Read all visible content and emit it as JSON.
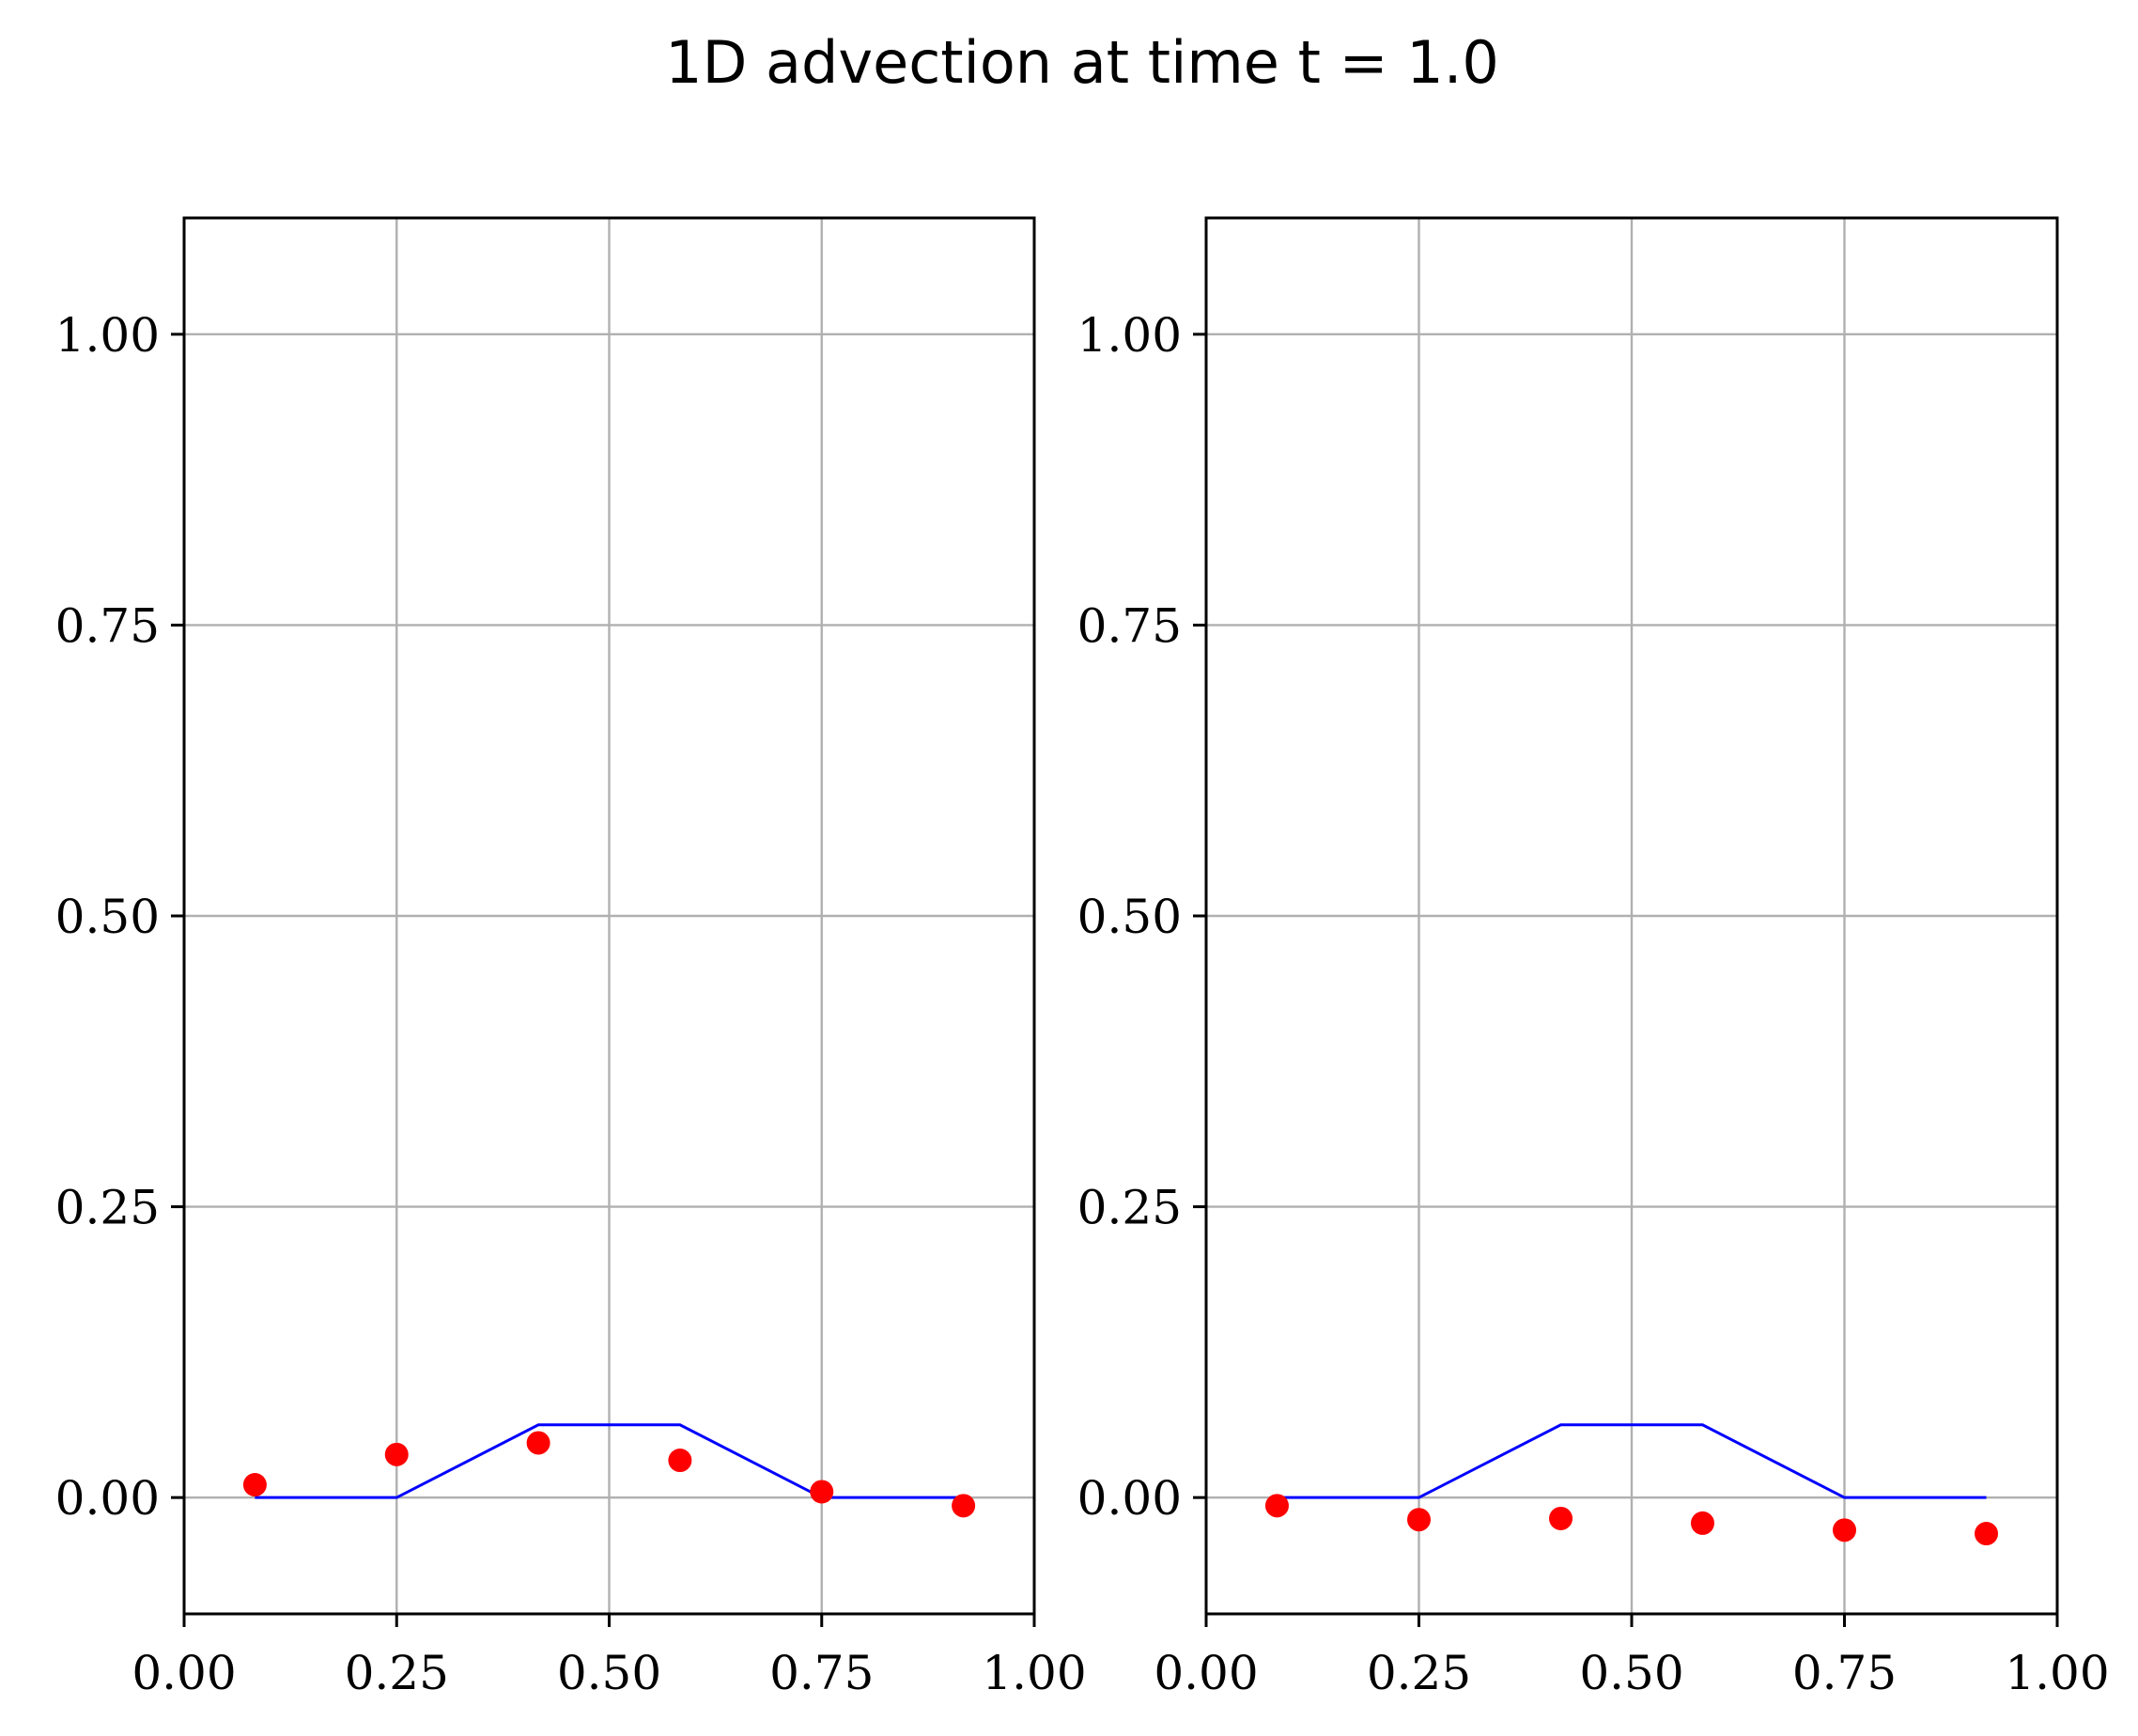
{
  "figure": {
    "title": "1D advection at time t = 1.0"
  },
  "colors": {
    "line": "#0000ff",
    "points": "#ff0000",
    "grid": "#b0b0b0",
    "axes": "#000000"
  },
  "chart_data": [
    {
      "type": "line",
      "title": "",
      "xlabel": "",
      "ylabel": "",
      "xlim": [
        0.0,
        1.0
      ],
      "ylim": [
        -0.1,
        1.1
      ],
      "xticks": [
        "0.00",
        "0.25",
        "0.50",
        "0.75",
        "1.00"
      ],
      "yticks": [
        "0.00",
        "0.25",
        "0.50",
        "0.75",
        "1.00"
      ],
      "grid": true,
      "series": [
        {
          "type": "line",
          "color": "#0000ff",
          "x": [
            0.0833,
            0.25,
            0.4167,
            0.5833,
            0.75,
            0.9167
          ],
          "y": [
            0.0,
            0.0,
            0.0625,
            0.0625,
            0.0,
            0.0
          ]
        },
        {
          "type": "scatter",
          "color": "#ff0000",
          "x": [
            0.0833,
            0.25,
            0.4167,
            0.5833,
            0.75,
            0.9167
          ],
          "y": [
            0.011,
            0.037,
            0.047,
            0.032,
            0.005,
            -0.007
          ]
        }
      ]
    },
    {
      "type": "line",
      "title": "",
      "xlabel": "",
      "ylabel": "",
      "xlim": [
        0.0,
        1.0
      ],
      "ylim": [
        -0.1,
        1.1
      ],
      "xticks": [
        "0.00",
        "0.25",
        "0.50",
        "0.75",
        "1.00"
      ],
      "yticks": [
        "0.00",
        "0.25",
        "0.50",
        "0.75",
        "1.00"
      ],
      "grid": true,
      "series": [
        {
          "type": "line",
          "color": "#0000ff",
          "x": [
            0.0833,
            0.25,
            0.4167,
            0.5833,
            0.75,
            0.9167
          ],
          "y": [
            0.0,
            0.0,
            0.0625,
            0.0625,
            0.0,
            0.0
          ]
        },
        {
          "type": "scatter",
          "color": "#ff0000",
          "x": [
            0.0833,
            0.25,
            0.4167,
            0.5833,
            0.75,
            0.9167
          ],
          "y": [
            -0.007,
            -0.019,
            -0.018,
            -0.022,
            -0.028,
            -0.031
          ]
        }
      ]
    }
  ]
}
